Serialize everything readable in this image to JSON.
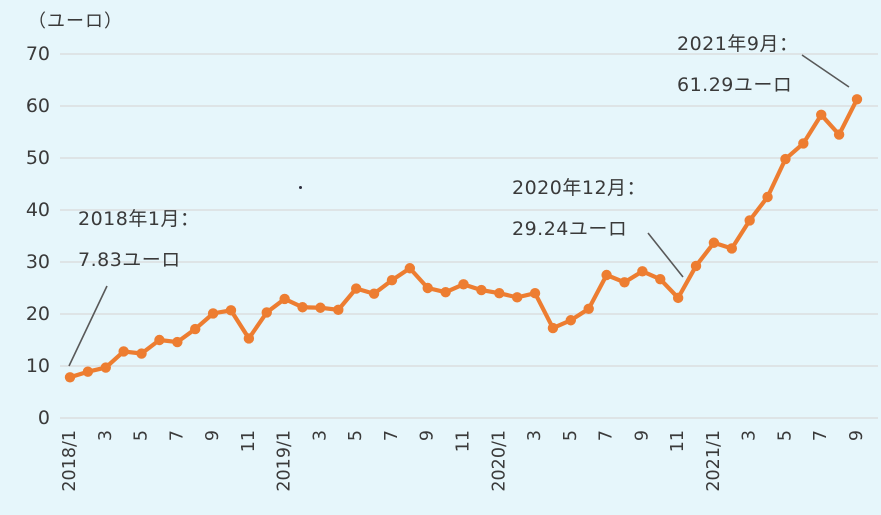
{
  "unit_label": "（ユーロ）",
  "chart_data": {
    "type": "line",
    "title": "（ユーロ）",
    "line_color": "#ED7D31",
    "background_color": "#e6f6fb",
    "gridline_color": "#d9d9d9",
    "axis_text_color": "#3a3a3a",
    "legend": "none",
    "grid": "horizontal",
    "x_start": "2018/1",
    "x_end": "2021/9",
    "x_frequency": "monthly",
    "values": [
      7.83,
      8.9,
      9.7,
      12.8,
      12.4,
      15.0,
      14.6,
      17.1,
      20.1,
      20.7,
      15.3,
      20.3,
      22.9,
      21.3,
      21.2,
      20.8,
      24.9,
      23.9,
      26.5,
      28.8,
      25.0,
      24.2,
      25.7,
      24.6,
      24.0,
      23.2,
      24.0,
      17.3,
      18.8,
      21.0,
      27.5,
      26.1,
      28.2,
      26.7,
      23.1,
      29.24,
      33.7,
      32.6,
      38.0,
      42.5,
      49.8,
      52.8,
      58.3,
      54.5,
      61.29
    ],
    "x_tick_labels": [
      "2018/1",
      "3",
      "5",
      "7",
      "9",
      "11",
      "2019/1",
      "3",
      "5",
      "7",
      "9",
      "11",
      "2020/1",
      "3",
      "5",
      "7",
      "9",
      "11",
      "2021/1",
      "3",
      "5",
      "7",
      "9"
    ],
    "x_tick_step_months": 2,
    "y_ticks": [
      0,
      10,
      20,
      30,
      40,
      50,
      60,
      70
    ],
    "ylim": [
      0,
      70
    ],
    "annotations": [
      {
        "line1": "2018年1月：",
        "line2": "7.83ユーロ",
        "target_index": 0
      },
      {
        "line1": "2020年12月：",
        "line2": "29.24ユーロ",
        "target_index": 35
      },
      {
        "line1": "2021年9月：",
        "line2": "61.29ユーロ",
        "target_index": 44
      }
    ]
  }
}
